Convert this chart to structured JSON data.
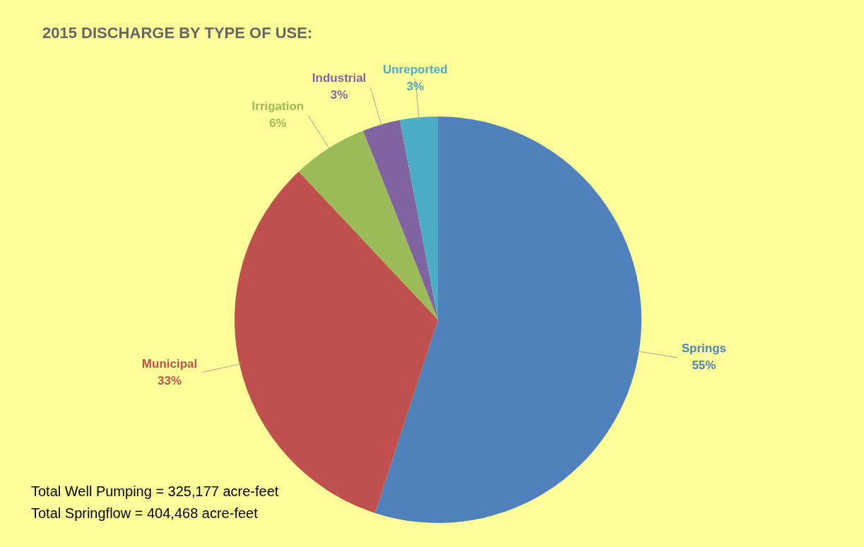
{
  "chart_data": {
    "type": "pie",
    "title": "2015 DISCHARGE BY TYPE OF USE:",
    "categories": [
      "Springs",
      "Municipal",
      "Irrigation",
      "Industrial",
      "Unreported"
    ],
    "values": [
      55,
      33,
      6,
      3,
      3
    ],
    "value_labels": [
      "55%",
      "33%",
      "6%",
      "3%",
      "3%"
    ],
    "colors": [
      "#4f81bd",
      "#c0504d",
      "#9bbb59",
      "#8064a2",
      "#4bacc6"
    ],
    "annotations": [
      "Total Well Pumping = 325,177 acre-feet",
      "Total Springflow = 404,468 acre-feet"
    ]
  }
}
